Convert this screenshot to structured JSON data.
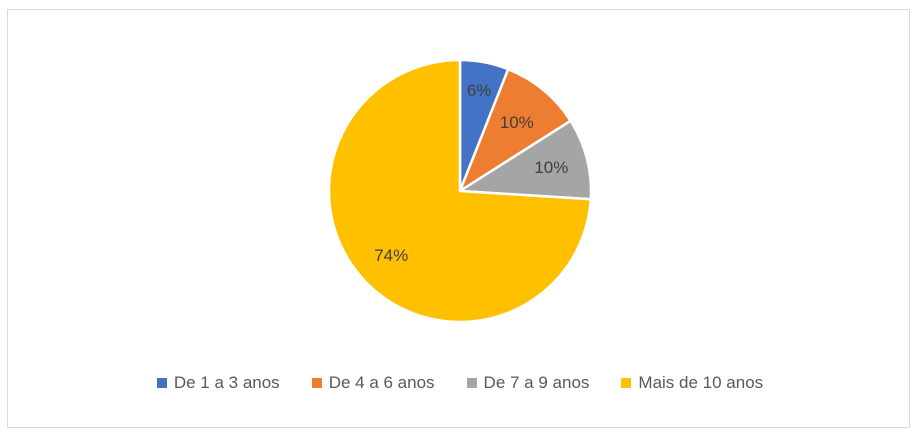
{
  "chart_data": {
    "type": "pie",
    "categories": [
      "De 1 a 3 anos",
      "De 4 a 6 anos",
      "De 7 a 9 anos",
      "Mais de 10 anos"
    ],
    "values": [
      6,
      10,
      10,
      74
    ],
    "data_labels": [
      "6%",
      "10%",
      "10%",
      "74%"
    ],
    "colors": [
      "#4472c4",
      "#ed7d31",
      "#a5a5a5",
      "#ffc000"
    ],
    "legend_position": "bottom",
    "start_angle": "top, clockwise"
  }
}
